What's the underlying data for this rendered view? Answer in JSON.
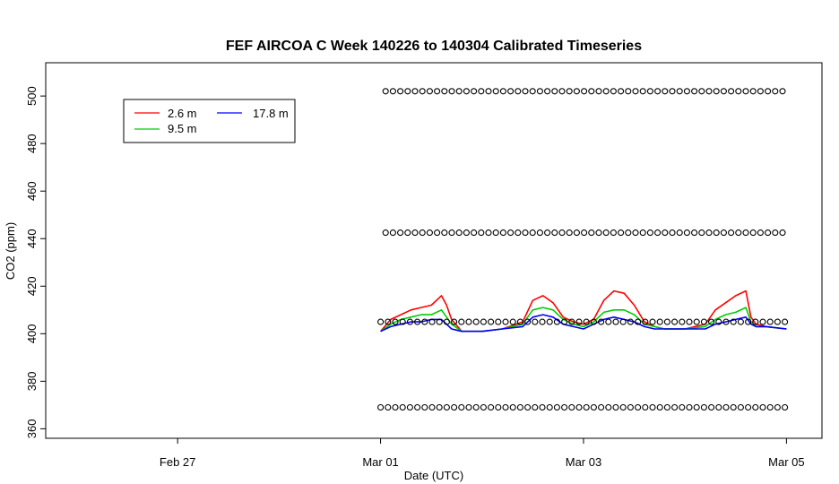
{
  "chart_data": {
    "type": "line",
    "title": "FEF AIRCOA C  Week 140226 to 140304  Calibrated Timeseries",
    "xlabel": "Date (UTC)",
    "ylabel": "CO2 (ppm)",
    "x_unit": "day",
    "x_ticks": [
      {
        "label": "Feb 27",
        "day": 0
      },
      {
        "label": "Mar 01",
        "day": 2
      },
      {
        "label": "Mar 03",
        "day": 4
      },
      {
        "label": "Mar 05",
        "day": 6
      }
    ],
    "xlim": [
      -1.3,
      6.35
    ],
    "ylim": [
      356,
      514
    ],
    "y_ticks": [
      360,
      380,
      400,
      420,
      440,
      460,
      480,
      500
    ],
    "grid": false,
    "legend": {
      "placement": "top-left",
      "entries": [
        {
          "name": "2.6 m",
          "color": "#ff0000"
        },
        {
          "name": "9.5 m",
          "color": "#00cc00"
        },
        {
          "name": "17.8 m",
          "color": "#0000ff"
        }
      ]
    },
    "series": [
      {
        "name": "2.6 m",
        "color": "#ff0000",
        "x": [
          2.0,
          2.1,
          2.2,
          2.3,
          2.4,
          2.5,
          2.6,
          2.65,
          2.7,
          2.8,
          3.0,
          3.2,
          3.4,
          3.5,
          3.6,
          3.7,
          3.8,
          3.9,
          4.0,
          4.1,
          4.2,
          4.3,
          4.4,
          4.5,
          4.6,
          4.7,
          4.8,
          5.0,
          5.2,
          5.3,
          5.4,
          5.5,
          5.6,
          5.65,
          5.7,
          5.8,
          6.0
        ],
        "y": [
          401,
          406,
          408,
          410,
          411,
          412,
          416,
          412,
          406,
          401,
          401,
          402,
          405,
          414,
          416,
          413,
          407,
          405,
          404,
          406,
          414,
          418,
          417,
          412,
          405,
          403,
          402,
          402,
          404,
          410,
          413,
          416,
          418,
          407,
          404,
          403,
          402
        ]
      },
      {
        "name": "9.5 m",
        "color": "#00cc00",
        "x": [
          2.0,
          2.1,
          2.2,
          2.3,
          2.4,
          2.5,
          2.6,
          2.65,
          2.7,
          2.8,
          3.0,
          3.2,
          3.4,
          3.5,
          3.6,
          3.7,
          3.8,
          3.9,
          4.0,
          4.1,
          4.2,
          4.3,
          4.4,
          4.5,
          4.6,
          4.7,
          4.8,
          5.0,
          5.2,
          5.3,
          5.4,
          5.5,
          5.6,
          5.65,
          5.7,
          5.8,
          6.0
        ],
        "y": [
          401,
          404,
          406,
          407,
          408,
          408,
          410,
          407,
          404,
          401,
          401,
          402,
          404,
          410,
          411,
          410,
          406,
          404,
          403,
          405,
          409,
          410,
          410,
          408,
          404,
          403,
          402,
          402,
          403,
          406,
          408,
          409,
          411,
          405,
          403,
          403,
          402
        ]
      },
      {
        "name": "17.8 m",
        "color": "#0000ff",
        "x": [
          2.0,
          2.1,
          2.2,
          2.3,
          2.4,
          2.5,
          2.6,
          2.65,
          2.7,
          2.8,
          3.0,
          3.2,
          3.4,
          3.5,
          3.6,
          3.7,
          3.8,
          3.9,
          4.0,
          4.1,
          4.2,
          4.3,
          4.4,
          4.5,
          4.6,
          4.7,
          4.8,
          5.0,
          5.2,
          5.3,
          5.4,
          5.5,
          5.6,
          5.65,
          5.7,
          5.8,
          6.0
        ],
        "y": [
          401,
          403,
          404,
          405,
          405,
          406,
          406,
          404,
          402,
          401,
          401,
          402,
          403,
          407,
          408,
          407,
          404,
          403,
          402,
          404,
          406,
          407,
          406,
          405,
          403,
          402,
          402,
          402,
          402,
          404,
          405,
          406,
          407,
          404,
          403,
          403,
          402
        ]
      }
    ],
    "calibration_points": {
      "marker": "open-circle",
      "x_start": 2.0,
      "x_end": 6.0,
      "levels": [
        {
          "y": 502,
          "x_start": 2.05
        },
        {
          "y": 442.5,
          "x_start": 2.05
        },
        {
          "y": 405,
          "x_start": 2.0
        },
        {
          "y": 369,
          "x_start": 2.0
        }
      ]
    }
  }
}
